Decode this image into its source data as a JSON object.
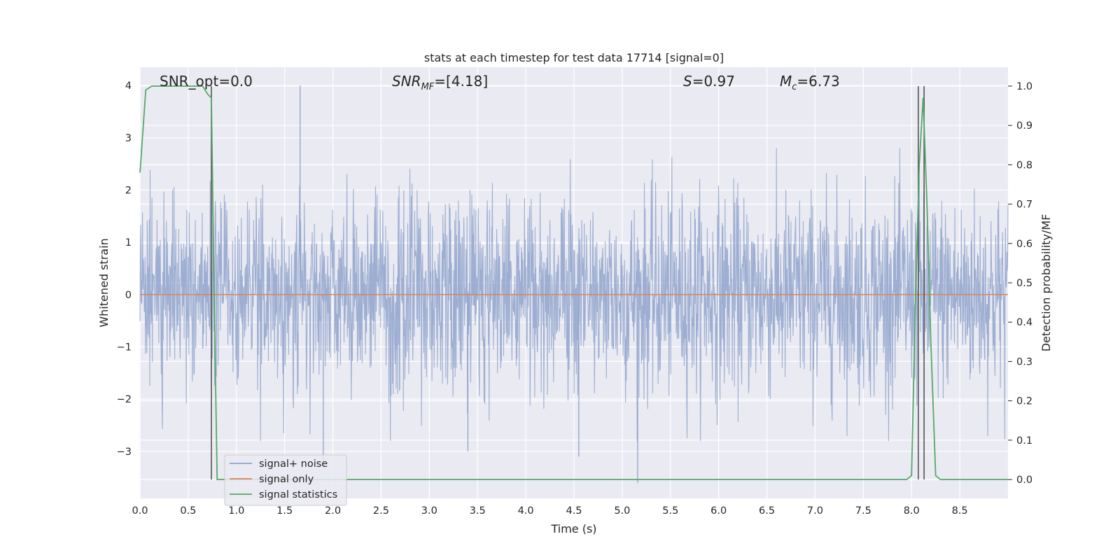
{
  "chart_data": {
    "type": "line",
    "title": "stats at each timestep for test data 17714 [signal=0]",
    "xlabel": "Time (s)",
    "ylabel": "Whitened strain",
    "y2label": "Detection probability/MF",
    "xlim": [
      0.0,
      9.0
    ],
    "ylim": [
      -3.9,
      4.35
    ],
    "y2lim": [
      -0.048,
      1.048
    ],
    "x_ticks": [
      "0.0",
      "0.5",
      "1.0",
      "1.5",
      "2.0",
      "2.5",
      "3.0",
      "3.5",
      "4.0",
      "4.5",
      "5.0",
      "5.5",
      "6.0",
      "6.5",
      "7.0",
      "7.5",
      "8.0",
      "8.5"
    ],
    "y_ticks": [
      "4",
      "3",
      "2",
      "1",
      "0",
      "−1",
      "−2",
      "−3"
    ],
    "y2_ticks": [
      "1.0",
      "0.9",
      "0.8",
      "0.7",
      "0.6",
      "0.5",
      "0.4",
      "0.3",
      "0.2",
      "0.1",
      "0.0"
    ],
    "grid": true,
    "legend_position": "lower-left",
    "annotations": {
      "snr_opt": "SNR_opt=0.0",
      "snr_mf_main": "SNR",
      "snr_mf_sub": "MF",
      "snr_mf_rest": "=[4.18]",
      "s_var": "S",
      "s_rest": "=0.97",
      "mc_var": "M",
      "mc_sub": "c",
      "mc_rest": "=6.73"
    },
    "series": [
      {
        "name": "signal+ noise",
        "color": "#8fa3cc",
        "description": "whitened strain noise, ~ +/-2 sigma band",
        "envelope_upper": 2.0,
        "envelope_lower": -2.0,
        "spikes": [
          {
            "x": 1.66,
            "y": 4.0
          },
          {
            "x": 4.55,
            "y": -3.1
          },
          {
            "x": 5.16,
            "y": -3.6
          },
          {
            "x": 1.9,
            "y": -3.3
          },
          {
            "x": 3.4,
            "y": -3.0
          }
        ]
      },
      {
        "name": "signal only",
        "color": "#dd8452",
        "x": [
          0.0,
          9.0
        ],
        "y": [
          0.0,
          0.0
        ]
      },
      {
        "name": "signal statistics",
        "color": "#55a868",
        "axis": "y2",
        "x": [
          0.0,
          0.06,
          0.12,
          0.2,
          0.5,
          0.65,
          0.7,
          0.74,
          0.77,
          0.8,
          0.9,
          2.0,
          4.0,
          6.0,
          7.5,
          7.95,
          8.0,
          8.04,
          8.08,
          8.12,
          8.16,
          8.2,
          8.25,
          8.3,
          8.5,
          9.0
        ],
        "y": [
          0.78,
          0.99,
          1.0,
          1.0,
          1.0,
          1.0,
          0.98,
          0.97,
          0.45,
          0.0,
          0.0,
          0.0,
          0.0,
          0.0,
          0.0,
          0.0,
          0.01,
          0.45,
          0.8,
          0.97,
          0.7,
          0.35,
          0.01,
          0.0,
          0.0,
          0.0
        ]
      }
    ],
    "vertical_lines": [
      {
        "x": 0.74,
        "color": "#555555"
      },
      {
        "x": 8.07,
        "color": "#555555"
      },
      {
        "x": 8.13,
        "color": "#555555"
      }
    ]
  }
}
